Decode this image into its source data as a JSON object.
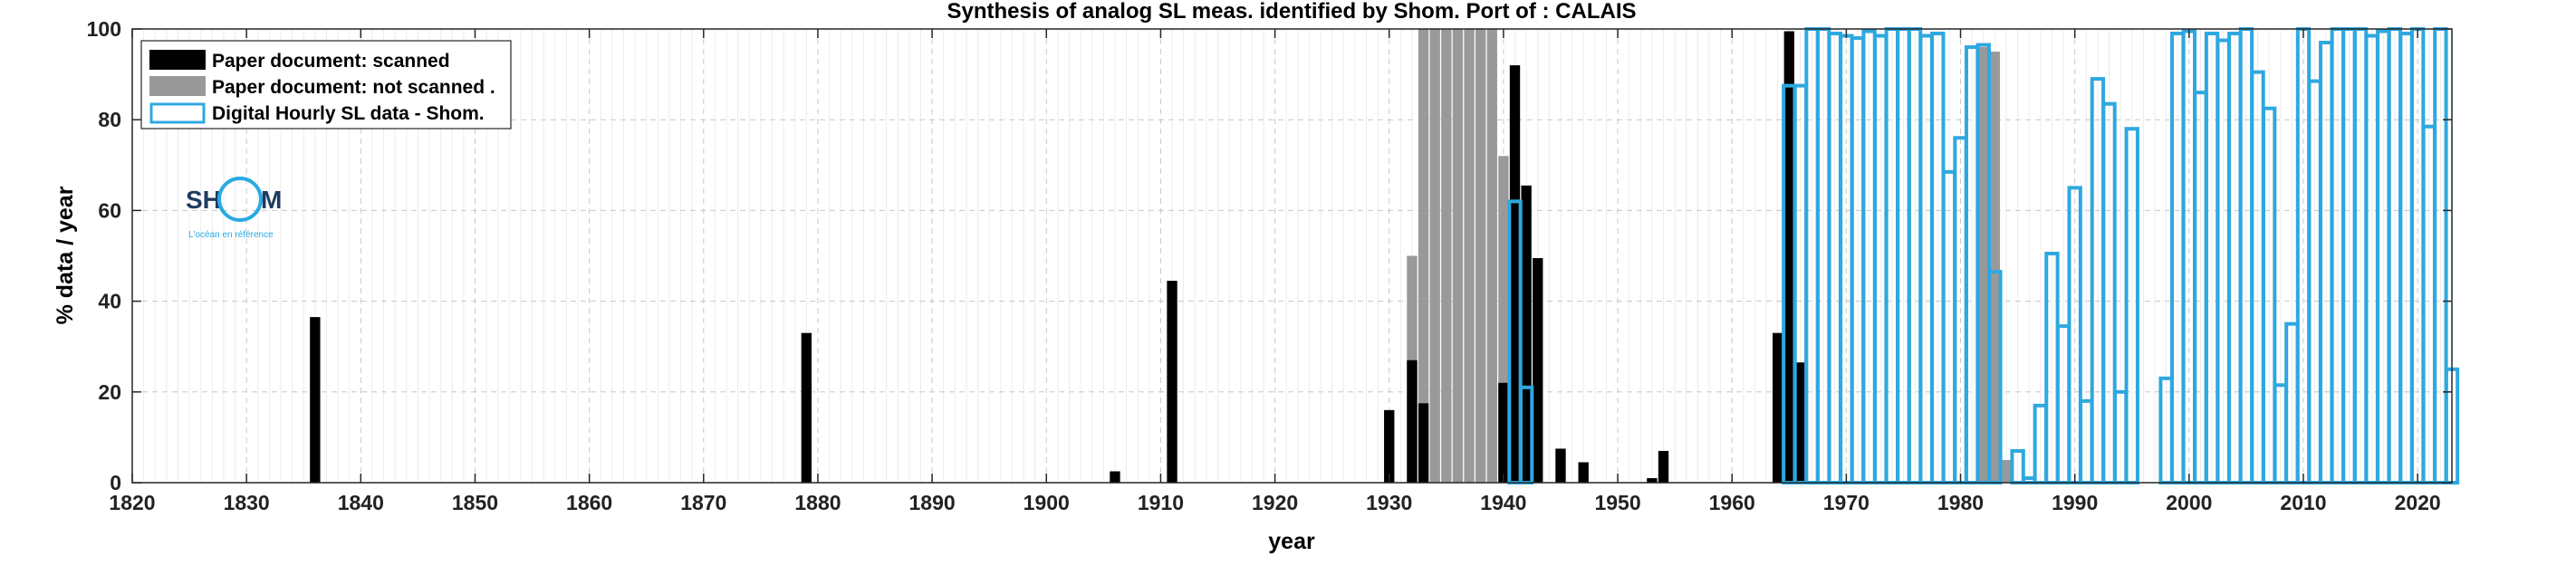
{
  "chart_data": {
    "type": "bar",
    "title": "Synthesis of analog SL meas. identified by Shom. Port of : CALAIS",
    "xlabel": "year",
    "ylabel": "% data / year",
    "xlim": [
      1820,
      2023
    ],
    "ylim": [
      0,
      100
    ],
    "xticks": [
      1820,
      1830,
      1840,
      1850,
      1860,
      1870,
      1880,
      1890,
      1900,
      1910,
      1920,
      1930,
      1940,
      1950,
      1960,
      1970,
      1980,
      1990,
      2000,
      2010,
      2020
    ],
    "yticks": [
      0,
      20,
      40,
      60,
      80,
      100
    ],
    "grid": true,
    "legend_position": "top-left",
    "series": [
      {
        "name": "Paper document: not scanned   .",
        "color": "#999999",
        "style": "filled",
        "points": [
          {
            "x": 1932,
            "y": 50
          },
          {
            "x": 1933,
            "y": 100
          },
          {
            "x": 1934,
            "y": 100
          },
          {
            "x": 1935,
            "y": 100
          },
          {
            "x": 1936,
            "y": 100
          },
          {
            "x": 1937,
            "y": 100
          },
          {
            "x": 1938,
            "y": 100
          },
          {
            "x": 1939,
            "y": 100
          },
          {
            "x": 1940,
            "y": 72
          },
          {
            "x": 1982,
            "y": 96
          },
          {
            "x": 1983,
            "y": 95
          },
          {
            "x": 1984,
            "y": 5
          }
        ]
      },
      {
        "name": "Paper document: scanned",
        "color": "#000000",
        "style": "filled",
        "points": [
          {
            "x": 1836,
            "y": 36.5
          },
          {
            "x": 1879,
            "y": 33
          },
          {
            "x": 1906,
            "y": 2.5
          },
          {
            "x": 1911,
            "y": 44.5
          },
          {
            "x": 1930,
            "y": 16
          },
          {
            "x": 1932,
            "y": 27
          },
          {
            "x": 1933,
            "y": 17.5
          },
          {
            "x": 1940,
            "y": 22
          },
          {
            "x": 1941,
            "y": 92
          },
          {
            "x": 1942,
            "y": 65.5
          },
          {
            "x": 1943,
            "y": 49.5
          },
          {
            "x": 1945,
            "y": 7.5
          },
          {
            "x": 1947,
            "y": 4.5
          },
          {
            "x": 1953,
            "y": 1
          },
          {
            "x": 1954,
            "y": 7
          },
          {
            "x": 1964,
            "y": 33
          },
          {
            "x": 1965,
            "y": 99.5
          },
          {
            "x": 1966,
            "y": 26.5
          }
        ]
      },
      {
        "name": "Digital Hourly SL data - Shom.",
        "color": "#2ea8e0",
        "style": "outline",
        "points": [
          {
            "x": 1941,
            "y": 62
          },
          {
            "x": 1942,
            "y": 21
          },
          {
            "x": 1965,
            "y": 87.5
          },
          {
            "x": 1966,
            "y": 87.5
          },
          {
            "x": 1967,
            "y": 100
          },
          {
            "x": 1968,
            "y": 100
          },
          {
            "x": 1969,
            "y": 99
          },
          {
            "x": 1970,
            "y": 98.5
          },
          {
            "x": 1971,
            "y": 98
          },
          {
            "x": 1972,
            "y": 99.5
          },
          {
            "x": 1973,
            "y": 98.5
          },
          {
            "x": 1974,
            "y": 100
          },
          {
            "x": 1975,
            "y": 100
          },
          {
            "x": 1976,
            "y": 100
          },
          {
            "x": 1977,
            "y": 98.5
          },
          {
            "x": 1978,
            "y": 99
          },
          {
            "x": 1979,
            "y": 68.5
          },
          {
            "x": 1980,
            "y": 76
          },
          {
            "x": 1981,
            "y": 96
          },
          {
            "x": 1982,
            "y": 96.5
          },
          {
            "x": 1983,
            "y": 46.5
          },
          {
            "x": 1985,
            "y": 7
          },
          {
            "x": 1986,
            "y": 1
          },
          {
            "x": 1987,
            "y": 17
          },
          {
            "x": 1988,
            "y": 50.5
          },
          {
            "x": 1989,
            "y": 34.5
          },
          {
            "x": 1990,
            "y": 65
          },
          {
            "x": 1991,
            "y": 18
          },
          {
            "x": 1992,
            "y": 89
          },
          {
            "x": 1993,
            "y": 83.5
          },
          {
            "x": 1994,
            "y": 20
          },
          {
            "x": 1995,
            "y": 78
          },
          {
            "x": 1998,
            "y": 23
          },
          {
            "x": 1999,
            "y": 99
          },
          {
            "x": 2000,
            "y": 99.5
          },
          {
            "x": 2001,
            "y": 86
          },
          {
            "x": 2002,
            "y": 99
          },
          {
            "x": 2003,
            "y": 97.5
          },
          {
            "x": 2004,
            "y": 99
          },
          {
            "x": 2005,
            "y": 100
          },
          {
            "x": 2006,
            "y": 90.5
          },
          {
            "x": 2007,
            "y": 82.5
          },
          {
            "x": 2008,
            "y": 21.5
          },
          {
            "x": 2009,
            "y": 35
          },
          {
            "x": 2010,
            "y": 100
          },
          {
            "x": 2011,
            "y": 88.5
          },
          {
            "x": 2012,
            "y": 97
          },
          {
            "x": 2013,
            "y": 100
          },
          {
            "x": 2014,
            "y": 100
          },
          {
            "x": 2015,
            "y": 100
          },
          {
            "x": 2016,
            "y": 98.5
          },
          {
            "x": 2017,
            "y": 99.5
          },
          {
            "x": 2018,
            "y": 100
          },
          {
            "x": 2019,
            "y": 99
          },
          {
            "x": 2020,
            "y": 100
          },
          {
            "x": 2021,
            "y": 78.5
          },
          {
            "x": 2022,
            "y": 100
          },
          {
            "x": 2023,
            "y": 25
          }
        ]
      }
    ]
  },
  "logo": {
    "text_left": "SH",
    "text_right": "M",
    "tagline": "L'océan en référence",
    "ring_color": "#29aae2"
  }
}
